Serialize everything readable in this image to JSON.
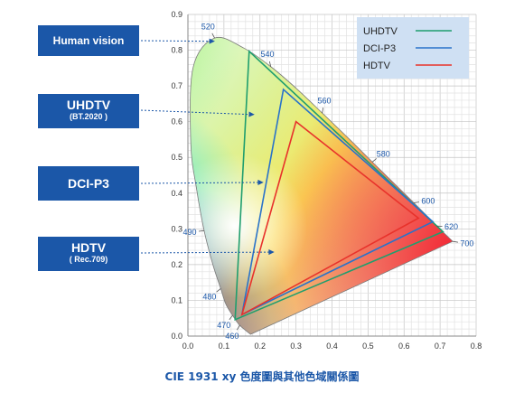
{
  "caption": "CIE 1931 xy 色度圖與其他色域關係圖",
  "labels": [
    {
      "title": "Human vision",
      "sub": ""
    },
    {
      "title": "UHDTV",
      "sub": "(BT.2020 )"
    },
    {
      "title": "DCI-P3",
      "sub": ""
    },
    {
      "title": "HDTV",
      "sub": "( Rec.709)"
    }
  ],
  "colors": {
    "label_bg": "#1b57a8",
    "uhdtv": "#1f9e6e",
    "dci_p3": "#2a73c9",
    "hdtv": "#e8322b",
    "legend_bg": "#cfe0f3",
    "pointer": "#1b57a8"
  },
  "chart_data": {
    "type": "scatter",
    "title": "",
    "xlabel": "",
    "ylabel": "",
    "xlim": [
      0.0,
      0.8
    ],
    "ylim": [
      0.0,
      0.9
    ],
    "x_ticks": [
      "0.0",
      "0.1",
      "0.2",
      "0.3",
      "0.4",
      "0.5",
      "0.6",
      "0.7",
      "0.8"
    ],
    "y_ticks": [
      "0.0",
      "0.1",
      "0.2",
      "0.3",
      "0.4",
      "0.5",
      "0.6",
      "0.7",
      "0.8",
      "0.9"
    ],
    "grid": true,
    "legend_position": "top-right",
    "spectral_locus": [
      {
        "nm": "",
        "x": 0.174,
        "y": 0.005
      },
      {
        "nm": "460",
        "x": 0.144,
        "y": 0.03
      },
      {
        "nm": "470",
        "x": 0.124,
        "y": 0.058
      },
      {
        "nm": "",
        "x": 0.105,
        "y": 0.09
      },
      {
        "nm": "480",
        "x": 0.091,
        "y": 0.133
      },
      {
        "nm": "",
        "x": 0.069,
        "y": 0.201
      },
      {
        "nm": "490",
        "x": 0.045,
        "y": 0.295
      },
      {
        "nm": "",
        "x": 0.024,
        "y": 0.412
      },
      {
        "nm": "",
        "x": 0.008,
        "y": 0.538
      },
      {
        "nm": "",
        "x": 0.014,
        "y": 0.75
      },
      {
        "nm": "520",
        "x": 0.074,
        "y": 0.834
      },
      {
        "nm": "",
        "x": 0.155,
        "y": 0.806
      },
      {
        "nm": "540",
        "x": 0.23,
        "y": 0.754
      },
      {
        "nm": "",
        "x": 0.302,
        "y": 0.692
      },
      {
        "nm": "560",
        "x": 0.373,
        "y": 0.624
      },
      {
        "nm": "",
        "x": 0.444,
        "y": 0.555
      },
      {
        "nm": "580",
        "x": 0.512,
        "y": 0.487
      },
      {
        "nm": "600",
        "x": 0.627,
        "y": 0.373
      },
      {
        "nm": "620",
        "x": 0.691,
        "y": 0.308
      },
      {
        "nm": "700",
        "x": 0.735,
        "y": 0.265
      }
    ],
    "series": [
      {
        "name": "UHDTV",
        "points": [
          [
            0.708,
            0.292
          ],
          [
            0.17,
            0.797
          ],
          [
            0.131,
            0.046
          ]
        ]
      },
      {
        "name": "DCI-P3",
        "points": [
          [
            0.68,
            0.32
          ],
          [
            0.265,
            0.69
          ],
          [
            0.15,
            0.06
          ]
        ]
      },
      {
        "name": "HDTV",
        "points": [
          [
            0.64,
            0.33
          ],
          [
            0.3,
            0.6
          ],
          [
            0.15,
            0.06
          ]
        ]
      }
    ]
  }
}
